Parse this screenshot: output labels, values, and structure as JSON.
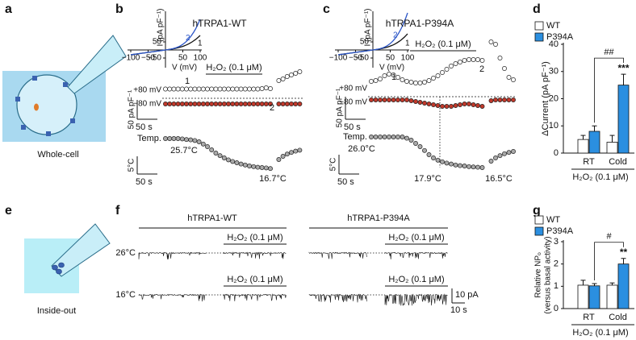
{
  "panel_letters": [
    "a",
    "b",
    "c",
    "d",
    "e",
    "f",
    "g"
  ],
  "panel_a": {
    "caption": "Whole-cell"
  },
  "panel_e": {
    "caption": "Inside-out"
  },
  "panel_b": {
    "title": "hTRPA1-WT",
    "iv_inset": {
      "xticks": [
        {
          "value": -100,
          "label": "−100"
        },
        {
          "value": -50,
          "label": "−50"
        },
        {
          "value": 50,
          "label": "50"
        },
        {
          "value": 100,
          "label": "100"
        }
      ],
      "yticks": [
        {
          "value": 50,
          "label": "50"
        },
        {
          "value": -50,
          "label": "−50"
        }
      ],
      "xlabel": "V (mV)",
      "ylabel": "I (pA pF⁻¹)",
      "curve_labels": [
        "1",
        "2"
      ]
    },
    "h2o2_label": "H₂O₂ (0.1 μM)",
    "mv_labels": [
      "+80 mV",
      "−80 mV"
    ],
    "markers": [
      "1",
      "2"
    ],
    "current_scale": "50 pA pF⁻¹",
    "time_scale": "50 s",
    "temp_label": "Temp.",
    "temp_scale": "5°C",
    "temp_time_scale": "50 s",
    "temp_annotations": [
      "25.7°C",
      "16.7°C"
    ],
    "plus80": [
      23,
      23,
      23,
      23,
      23,
      23,
      23,
      23,
      23,
      23,
      23,
      23,
      23,
      23,
      23,
      23,
      23,
      23,
      23,
      23,
      23,
      23,
      23,
      24,
      26,
      24,
      null,
      44,
      48,
      54,
      58,
      62,
      66
    ],
    "minus80": [
      -14,
      -14,
      -14,
      -14,
      -14,
      -14,
      -14,
      -14,
      -14,
      -14,
      -14,
      -14,
      -14,
      -14,
      -14,
      -14,
      -14,
      -14,
      -14,
      -14,
      -14,
      -14,
      -14,
      -14,
      -14,
      -14,
      null,
      -14,
      -14,
      -14,
      -14,
      -14,
      -14
    ],
    "temperature": [
      26,
      26,
      26,
      26,
      25.9,
      25.7,
      25.6,
      25.4,
      25,
      24.3,
      23.5,
      22.5,
      21.5,
      20.7,
      20,
      19.4,
      18.9,
      18.5,
      18.1,
      17.8,
      17.5,
      17.3,
      17.1,
      17,
      16.9,
      16.7,
      null,
      19.5,
      20.5,
      21.2,
      21.7,
      22.1,
      22.4
    ]
  },
  "panel_c": {
    "title": "hTRPA1-P394A",
    "iv_inset": {
      "xticks": [
        {
          "value": -100,
          "label": "−100"
        },
        {
          "value": -50,
          "label": "−50"
        },
        {
          "value": 50,
          "label": "50"
        },
        {
          "value": 100,
          "label": "100"
        }
      ],
      "yticks": [
        {
          "value": 50,
          "label": "50"
        },
        {
          "value": -50,
          "label": "−50"
        }
      ],
      "xlabel": "V (mV)",
      "ylabel": "I (pA pF⁻¹)",
      "curve_labels": [
        "1",
        "2"
      ]
    },
    "h2o2_label": "H₂O₂ (0.1 μM)",
    "mv_labels": [
      "+80 mV",
      "−80 mV"
    ],
    "markers": [
      "1",
      "2"
    ],
    "current_scale": "50 pA pF⁻¹",
    "time_scale": "50 s",
    "temp_label": "Temp.",
    "temp_scale": "5°C",
    "temp_time_scale": "50 s",
    "temp_annotations": [
      "26.0°C",
      "17.9°C",
      "16.5°C"
    ],
    "plus80": [
      38,
      40,
      44,
      52,
      56,
      54,
      48,
      42,
      38,
      36,
      34,
      34,
      36,
      40,
      46,
      52,
      60,
      68,
      76,
      82,
      86,
      90,
      92,
      92,
      92,
      90,
      null,
      136,
      130,
      96,
      70,
      48,
      42
    ],
    "minus80": [
      -8,
      -8,
      -8,
      -8,
      -8,
      -8,
      -8,
      -8,
      -8,
      -10,
      -12,
      -14,
      -16,
      -18,
      -20,
      -22,
      -24,
      -24,
      -24,
      -22,
      -20,
      -18,
      -18,
      -20,
      -22,
      -24,
      null,
      -10,
      -8,
      -8,
      -8,
      -8,
      -8
    ],
    "temperature": [
      26,
      26,
      26,
      26,
      26,
      26,
      26,
      26,
      25.6,
      25,
      24,
      23,
      21.8,
      20.5,
      19.5,
      18.8,
      18.3,
      17.9,
      17.6,
      17.3,
      17.1,
      17,
      16.8,
      16.7,
      16.6,
      16.5,
      null,
      18.5,
      19.5,
      20.2,
      20.8,
      21.2,
      21.5
    ]
  },
  "panel_f": {
    "wt_title": "hTRPA1-WT",
    "p394a_title": "hTRPA1-P394A",
    "temps": [
      "26°C",
      "16°C"
    ],
    "h2o2_labels": [
      "H₂O₂ (0.1 μM)",
      "H₂O₂ (0.1 μM)",
      "H₂O₂ (0.1 μM)",
      "H₂O₂ (0.1 μM)"
    ],
    "current_scale": "10 pA",
    "time_scale": "10 s"
  },
  "chart_data": [
    {
      "type": "bar",
      "ylabel": "ΔCurrent (pA pF⁻¹)",
      "categories": [
        "RT",
        "Cold"
      ],
      "group_label": "H₂O₂ (0.1 μM)",
      "ylim": [
        0,
        40
      ],
      "yticks": [
        0,
        10,
        20,
        30,
        40
      ],
      "series": [
        {
          "name": "WT",
          "color": "#ffffff",
          "values": [
            5,
            4
          ],
          "errors": [
            1.5,
            2.5
          ]
        },
        {
          "name": "P394A",
          "color": "#2b8fe0",
          "values": [
            8,
            25
          ],
          "errors": [
            2,
            4
          ]
        }
      ],
      "annotations": [
        "##",
        "***"
      ]
    },
    {
      "type": "bar",
      "ylabel": [
        "Relative NPₒ",
        "(versus basal activity)"
      ],
      "categories": [
        "RT",
        "Cold"
      ],
      "group_label": "H₂O₂ (0.1 μM)",
      "ylim": [
        0,
        3
      ],
      "yticks": [
        0,
        1,
        2,
        3
      ],
      "series": [
        {
          "name": "WT",
          "color": "#ffffff",
          "values": [
            1.05,
            1.05
          ],
          "errors": [
            0.22,
            0.1
          ]
        },
        {
          "name": "P394A",
          "color": "#2b8fe0",
          "values": [
            1.02,
            2.0
          ],
          "errors": [
            0.1,
            0.25
          ]
        }
      ],
      "annotations": [
        "#",
        "**"
      ]
    }
  ]
}
